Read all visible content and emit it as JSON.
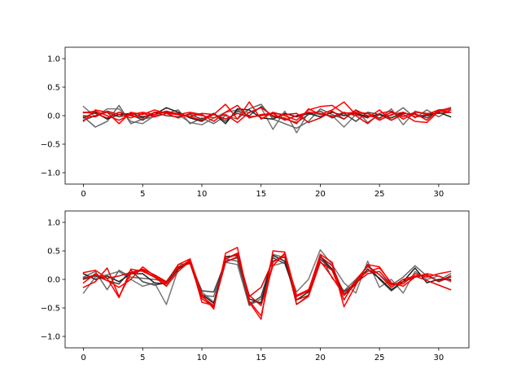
{
  "chart_data": [
    {
      "type": "line",
      "xlim": [
        -1.55,
        32.55
      ],
      "ylim": [
        -1.2,
        1.2
      ],
      "xticks": [
        0,
        5,
        10,
        15,
        20,
        25,
        30
      ],
      "yticks": [
        -1.0,
        -0.5,
        0.0,
        0.5,
        1.0
      ],
      "xtick_labels": [
        "0",
        "5",
        "10",
        "15",
        "20",
        "25",
        "30"
      ],
      "ytick_labels": [
        "−1.0",
        "−0.5",
        "0.0",
        "0.5",
        "1.0"
      ],
      "x": [
        0,
        1,
        2,
        3,
        4,
        5,
        6,
        7,
        8,
        9,
        10,
        11,
        12,
        13,
        14,
        15,
        16,
        17,
        18,
        19,
        20,
        21,
        22,
        23,
        24,
        25,
        26,
        27,
        28,
        29,
        30,
        31
      ],
      "series": [
        {
          "color": "#777777",
          "values": [
            0.16,
            -0.02,
            0.12,
            0.12,
            -0.1,
            -0.14,
            0.0,
            0.08,
            0.02,
            -0.12,
            -0.16,
            -0.04,
            0.06,
            0.1,
            0.05,
            0.14,
            -0.24,
            0.08,
            -0.3,
            0.06,
            0.02,
            0.0,
            -0.2,
            0.02,
            0.05,
            -0.06,
            0.12,
            -0.16,
            0.08,
            0.02,
            0.1,
            0.12
          ]
        },
        {
          "color": "#666666",
          "values": [
            -0.02,
            -0.2,
            -0.1,
            0.18,
            -0.14,
            -0.06,
            -0.02,
            0.04,
            0.1,
            -0.14,
            -0.04,
            -0.14,
            0.0,
            -0.06,
            0.12,
            0.2,
            -0.06,
            -0.14,
            -0.22,
            -0.1,
            0.12,
            0.02,
            -0.06,
            0.1,
            -0.12,
            0.02,
            0.0,
            0.14,
            -0.04,
            0.1,
            -0.02,
            0.1
          ]
        },
        {
          "color": "#444444",
          "values": [
            -0.08,
            0.0,
            0.06,
            -0.02,
            0.02,
            -0.08,
            0.06,
            0.0,
            -0.02,
            0.02,
            -0.06,
            0.04,
            -0.1,
            0.08,
            0.0,
            0.16,
            -0.02,
            -0.06,
            -0.12,
            0.02,
            0.08,
            -0.04,
            0.04,
            -0.1,
            0.06,
            0.02,
            -0.08,
            0.04,
            0.02,
            -0.04,
            0.08,
            0.06
          ]
        },
        {
          "color": "#222222",
          "values": [
            -0.04,
            0.06,
            -0.06,
            0.02,
            0.04,
            -0.02,
            0.02,
            0.14,
            0.06,
            -0.04,
            -0.1,
            0.04,
            -0.14,
            0.12,
            0.1,
            -0.04,
            -0.06,
            0.04,
            -0.02,
            0.04,
            -0.02,
            0.06,
            0.0,
            0.04,
            -0.02,
            0.02,
            -0.04,
            0.06,
            -0.02,
            0.0,
            0.06,
            -0.02
          ]
        },
        {
          "color": "#ff0000",
          "values": [
            0.05,
            0.08,
            0.0,
            -0.08,
            0.02,
            0.06,
            0.02,
            0.08,
            0.02,
            -0.02,
            -0.08,
            0.02,
            0.2,
            -0.06,
            0.24,
            -0.06,
            0.06,
            0.0,
            -0.08,
            0.1,
            0.16,
            0.18,
            0.04,
            0.06,
            0.04,
            -0.08,
            0.02,
            0.06,
            -0.02,
            0.02,
            0.1,
            0.1
          ]
        },
        {
          "color": "#ff0000",
          "values": [
            -0.1,
            0.1,
            0.06,
            -0.14,
            0.06,
            0.02,
            0.1,
            0.04,
            -0.04,
            0.04,
            0.0,
            -0.04,
            0.02,
            -0.12,
            0.06,
            0.14,
            0.0,
            -0.04,
            -0.14,
            0.12,
            0.02,
            0.1,
            0.24,
            0.02,
            -0.04,
            0.1,
            -0.08,
            0.02,
            -0.1,
            -0.12,
            0.08,
            0.14
          ]
        },
        {
          "color": "#ee0000",
          "values": [
            0.0,
            -0.02,
            0.08,
            0.02,
            -0.04,
            0.04,
            -0.02,
            0.04,
            0.02,
            0.06,
            0.02,
            -0.1,
            0.06,
            0.18,
            -0.04,
            0.02,
            0.04,
            -0.08,
            0.0,
            0.06,
            0.04,
            -0.02,
            0.06,
            0.0,
            -0.14,
            0.04,
            0.08,
            -0.06,
            0.04,
            -0.08,
            0.1,
            0.06
          ]
        },
        {
          "color": "#dd0000",
          "values": [
            0.06,
            0.04,
            -0.04,
            0.06,
            0.0,
            -0.04,
            0.06,
            0.06,
            0.04,
            -0.02,
            0.04,
            0.02,
            -0.06,
            0.04,
            -0.02,
            0.0,
            0.04,
            0.02,
            0.04,
            -0.12,
            -0.04,
            0.08,
            -0.06,
            0.1,
            0.0,
            -0.04,
            0.06,
            -0.02,
            0.06,
            0.04,
            0.04,
            0.06
          ]
        }
      ]
    },
    {
      "type": "line",
      "xlim": [
        -1.55,
        32.55
      ],
      "ylim": [
        -1.2,
        1.2
      ],
      "xticks": [
        0,
        5,
        10,
        15,
        20,
        25,
        30
      ],
      "yticks": [
        -1.0,
        -0.5,
        0.0,
        0.5,
        1.0
      ],
      "xtick_labels": [
        "0",
        "5",
        "10",
        "15",
        "20",
        "25",
        "30"
      ],
      "ytick_labels": [
        "−1.0",
        "−0.5",
        "0.0",
        "0.5",
        "1.0"
      ],
      "x": [
        0,
        1,
        2,
        3,
        4,
        5,
        6,
        7,
        8,
        9,
        10,
        11,
        12,
        13,
        14,
        15,
        16,
        17,
        18,
        19,
        20,
        21,
        22,
        23,
        24,
        25,
        26,
        27,
        28,
        29,
        30,
        31
      ],
      "series": [
        {
          "color": "#777777",
          "values": [
            -0.24,
            0.04,
            0.08,
            0.14,
            0.0,
            -0.12,
            -0.06,
            -0.44,
            0.18,
            0.3,
            -0.22,
            -0.4,
            0.3,
            0.26,
            -0.46,
            -0.34,
            0.24,
            0.3,
            -0.22,
            0.0,
            0.52,
            0.26,
            -0.06,
            -0.24,
            0.32,
            -0.14,
            0.0,
            -0.24,
            0.14,
            0.0,
            0.06,
            -0.04
          ]
        },
        {
          "color": "#666666",
          "values": [
            0.04,
            0.14,
            -0.18,
            0.16,
            0.04,
            0.02,
            0.0,
            -0.04,
            0.26,
            0.28,
            -0.28,
            -0.3,
            0.36,
            0.32,
            -0.4,
            -0.4,
            0.44,
            0.38,
            -0.44,
            -0.28,
            0.44,
            0.02,
            -0.2,
            0.0,
            0.22,
            0.08,
            -0.1,
            0.04,
            0.24,
            0.06,
            -0.02,
            0.1
          ]
        },
        {
          "color": "#444444",
          "values": [
            0.0,
            0.06,
            -0.02,
            -0.08,
            0.16,
            -0.04,
            -0.1,
            -0.06,
            0.22,
            0.3,
            -0.2,
            -0.22,
            0.32,
            0.38,
            -0.44,
            -0.3,
            0.38,
            0.28,
            -0.3,
            -0.2,
            0.36,
            0.16,
            -0.22,
            -0.06,
            0.26,
            0.0,
            -0.2,
            -0.04,
            0.06,
            0.08,
            -0.04,
            0.04
          ]
        },
        {
          "color": "#222222",
          "values": [
            0.1,
            0.0,
            0.06,
            -0.04,
            0.1,
            0.1,
            -0.06,
            -0.08,
            0.18,
            0.34,
            -0.26,
            -0.42,
            0.4,
            0.42,
            -0.34,
            -0.42,
            0.42,
            0.32,
            -0.36,
            -0.22,
            0.4,
            0.18,
            -0.28,
            -0.08,
            0.18,
            0.02,
            -0.18,
            -0.04,
            0.2,
            -0.06,
            0.0,
            0.0
          ]
        },
        {
          "color": "#ff0000",
          "values": [
            0.12,
            0.16,
            0.02,
            -0.32,
            0.18,
            0.14,
            0.04,
            -0.08,
            0.26,
            0.36,
            -0.26,
            -0.52,
            0.46,
            0.56,
            -0.4,
            -0.7,
            0.5,
            0.48,
            -0.3,
            -0.2,
            0.44,
            0.3,
            -0.48,
            -0.1,
            0.26,
            0.22,
            -0.08,
            -0.08,
            0.1,
            0.04,
            0.1,
            0.14
          ]
        },
        {
          "color": "#ff0000",
          "values": [
            -0.06,
            0.1,
            -0.02,
            -0.14,
            0.0,
            0.22,
            0.06,
            -0.06,
            0.2,
            0.34,
            -0.4,
            -0.46,
            0.36,
            0.44,
            -0.38,
            -0.64,
            0.3,
            0.44,
            -0.28,
            -0.18,
            0.32,
            0.04,
            -0.28,
            -0.02,
            0.14,
            0.2,
            -0.06,
            -0.12,
            0.04,
            0.1,
            0.06,
            -0.02
          ]
        },
        {
          "color": "#ee0000",
          "values": [
            -0.14,
            -0.04,
            0.2,
            -0.3,
            0.1,
            0.16,
            0.04,
            -0.12,
            0.14,
            0.32,
            -0.3,
            -0.46,
            0.3,
            0.4,
            -0.28,
            -0.46,
            0.24,
            0.46,
            -0.44,
            -0.3,
            0.3,
            0.16,
            -0.36,
            -0.02,
            0.24,
            0.08,
            -0.14,
            0.0,
            0.06,
            -0.02,
            -0.1,
            -0.18
          ]
        },
        {
          "color": "#dd0000",
          "values": [
            0.02,
            0.08,
            0.02,
            0.06,
            0.12,
            0.18,
            0.08,
            -0.04,
            0.22,
            0.28,
            -0.34,
            -0.48,
            0.36,
            0.46,
            -0.3,
            -0.14,
            0.32,
            0.4,
            -0.36,
            -0.28,
            0.4,
            0.24,
            -0.26,
            -0.06,
            0.1,
            0.14,
            -0.1,
            -0.04,
            0.04,
            0.08,
            -0.04,
            0.06
          ]
        }
      ]
    }
  ]
}
